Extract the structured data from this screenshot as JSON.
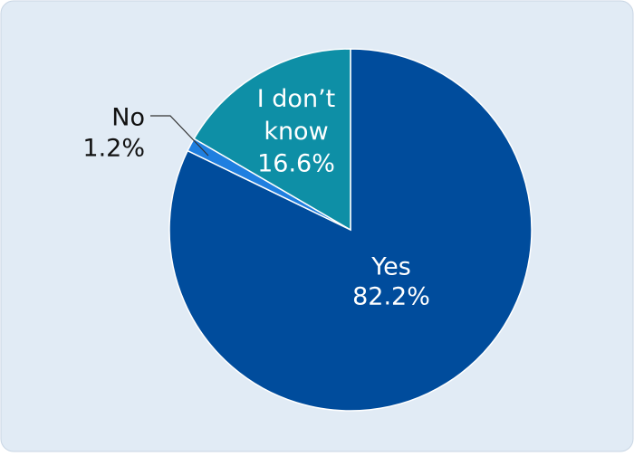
{
  "chart_data": {
    "type": "pie",
    "categories": [
      "Yes",
      "No",
      "I don’t know"
    ],
    "values": [
      82.2,
      1.2,
      16.6
    ],
    "value_labels": [
      "82.2%",
      "1.2%",
      "16.6%"
    ],
    "colors": [
      "#004c9c",
      "#1f7fe0",
      "#0e8fa6"
    ]
  }
}
